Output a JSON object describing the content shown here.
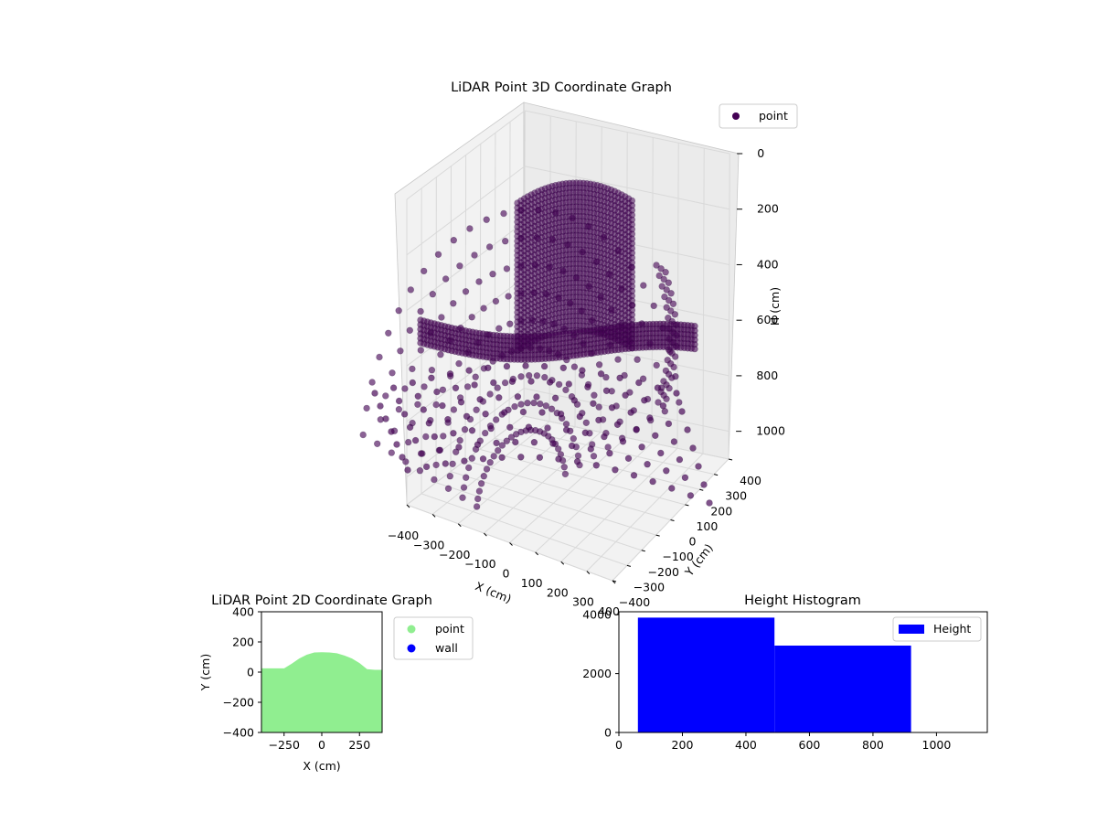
{
  "chart_data": [
    {
      "type": "scatter3d",
      "title": "LiDAR Point 3D Coordinate Graph",
      "xlabel": "X (cm)",
      "ylabel": "Y (cm)",
      "zlabel": "H (cm)",
      "xticks": [
        "−400",
        "−300",
        "−200",
        "−100",
        "0",
        "100",
        "200",
        "300",
        "400"
      ],
      "yticks": [
        "−400",
        "−300",
        "−200",
        "−100",
        "0",
        "100",
        "200",
        "300",
        "400"
      ],
      "zticks": [
        "0",
        "200",
        "400",
        "600",
        "800",
        "1000"
      ],
      "xlim": [
        -400,
        400
      ],
      "ylim": [
        -400,
        400
      ],
      "zlim": [
        1100,
        0
      ],
      "legend": {
        "entries": [
          "point"
        ],
        "placement": "top-right"
      },
      "series": [
        {
          "name": "point",
          "color": "#440154",
          "shape": "circle"
        }
      ]
    },
    {
      "type": "scatter",
      "title": "LiDAR Point 2D Coordinate Graph",
      "xlabel": "X (cm)",
      "ylabel": "Y (cm)",
      "xticks": [
        "−250",
        "0",
        "250"
      ],
      "yticks": [
        "400",
        "200",
        "0",
        "−200",
        "−400"
      ],
      "xlim": [
        -400,
        400
      ],
      "ylim": [
        -400,
        400
      ],
      "legend": {
        "entries": [
          "point",
          "wall"
        ],
        "placement": "outside-right"
      },
      "series": [
        {
          "name": "point",
          "color": "#90ee90"
        },
        {
          "name": "wall",
          "color": "#0000ff"
        }
      ],
      "point_region_upper_edge": {
        "x": [
          -400,
          -300,
          -250,
          -200,
          -150,
          -100,
          -50,
          0,
          50,
          100,
          150,
          200,
          250,
          300,
          350,
          400
        ],
        "y": [
          25,
          25,
          25,
          55,
          90,
          115,
          130,
          132,
          130,
          125,
          110,
          90,
          60,
          20,
          15,
          15
        ]
      }
    },
    {
      "type": "bar",
      "title": "Height Histogram",
      "xticks": [
        "0",
        "200",
        "400",
        "600",
        "800",
        "1000"
      ],
      "yticks": [
        "0",
        "2000",
        "4000"
      ],
      "xlim": [
        0,
        1160
      ],
      "ylim": [
        0,
        4100
      ],
      "legend": {
        "entries": [
          "Height"
        ],
        "placement": "top-right"
      },
      "series": [
        {
          "name": "Height",
          "color": "#0000ff",
          "bins": [
            {
              "start": 60,
              "end": 490,
              "count": 3900
            },
            {
              "start": 490,
              "end": 920,
              "count": 2950
            }
          ]
        }
      ]
    }
  ]
}
